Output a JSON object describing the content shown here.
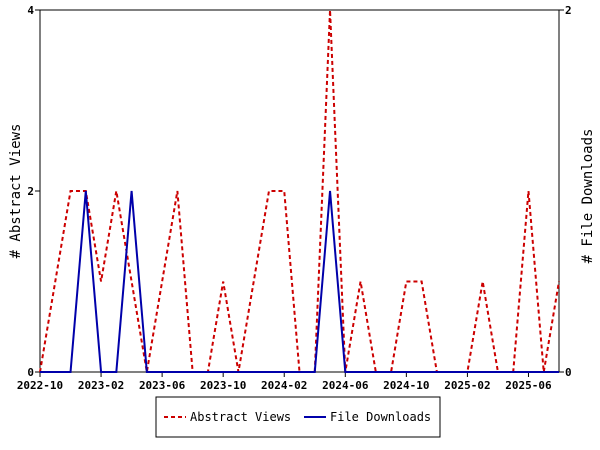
{
  "chart_data": {
    "type": "line",
    "title": "",
    "x_tick_labels": [
      "2022-10",
      "2023-02",
      "2023-06",
      "2023-10",
      "2024-02",
      "2024-06",
      "2024-10",
      "2025-02",
      "2025-06"
    ],
    "x_range": [
      "2022-10",
      "2025-08"
    ],
    "y_left": {
      "label": "# Abstract Views",
      "range": [
        0,
        4
      ],
      "ticks": [
        "0",
        "2",
        "4"
      ]
    },
    "y_right": {
      "label": "# File Downloads",
      "range": [
        0,
        2
      ],
      "ticks": [
        "0",
        "2"
      ]
    },
    "grid": false,
    "legend_placement": "bottom-center",
    "x": [
      "2022-10",
      "2022-11",
      "2022-12",
      "2023-01",
      "2023-02",
      "2023-03",
      "2023-04",
      "2023-05",
      "2023-06",
      "2023-07",
      "2023-08",
      "2023-09",
      "2023-10",
      "2023-11",
      "2023-12",
      "2024-01",
      "2024-02",
      "2024-03",
      "2024-04",
      "2024-05",
      "2024-06",
      "2024-07",
      "2024-08",
      "2024-09",
      "2024-10",
      "2024-11",
      "2024-12",
      "2025-01",
      "2025-02",
      "2025-03",
      "2025-04",
      "2025-05",
      "2025-06",
      "2025-07",
      "2025-08"
    ],
    "series": [
      {
        "name": "Abstract Views",
        "axis": "left",
        "color": "#cc0000",
        "style": "dashed",
        "values": [
          0,
          1,
          2,
          2,
          1,
          2,
          1,
          0,
          1,
          2,
          0,
          0,
          1,
          0,
          1,
          2,
          2,
          0,
          0,
          4,
          0,
          1,
          0,
          0,
          1,
          1,
          0,
          0,
          0,
          1,
          0,
          0,
          2,
          0,
          1
        ]
      },
      {
        "name": "File Downloads",
        "axis": "right",
        "color": "#0000aa",
        "style": "solid",
        "values": [
          0,
          0,
          0,
          1,
          0,
          0,
          1,
          0,
          0,
          0,
          0,
          0,
          0,
          0,
          0,
          0,
          0,
          0,
          0,
          1,
          0,
          0,
          0,
          0,
          0,
          0,
          0,
          0,
          0,
          0,
          0,
          0,
          0,
          0,
          0
        ]
      }
    ]
  }
}
